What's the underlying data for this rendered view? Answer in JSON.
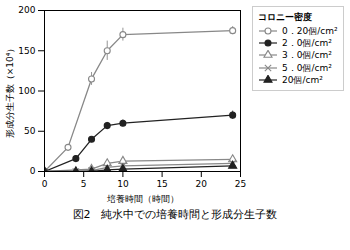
{
  "chart_data": {
    "type": "line",
    "caption": "図2　純水中での培養時間と形成分生子数",
    "x_label": "培養時間（時間）",
    "y_label": "形成分生子数（×10⁴）",
    "xlim": [
      0,
      25
    ],
    "ylim": [
      0,
      200
    ],
    "xticks": [
      0,
      5,
      10,
      15,
      20,
      25
    ],
    "yticks": [
      0,
      50,
      100,
      150,
      200
    ],
    "legend_title": "コロニー密度",
    "series": [
      {
        "name": "0．20個/cm²",
        "color": "#888888",
        "marker": "circle-open",
        "x": [
          0,
          3,
          6,
          8,
          10,
          24
        ],
        "values": [
          0,
          30,
          115,
          150,
          170,
          175
        ],
        "yerr": [
          0,
          3,
          8,
          12,
          8,
          5
        ]
      },
      {
        "name": "2．0個/cm²",
        "color": "#222222",
        "marker": "circle",
        "x": [
          0,
          4,
          6,
          8,
          10,
          24
        ],
        "values": [
          0,
          16,
          40,
          57,
          60,
          70
        ],
        "yerr": [
          0,
          0,
          3,
          4,
          4,
          5
        ]
      },
      {
        "name": "3．0個/cm²",
        "color": "#888888",
        "marker": "triangle-open",
        "x": [
          0,
          6,
          8,
          10,
          24
        ],
        "values": [
          0,
          3,
          10,
          13,
          15
        ],
        "yerr": [
          0,
          0,
          1,
          1,
          1
        ]
      },
      {
        "name": "5．0個/cm²",
        "color": "#888888",
        "marker": "x",
        "x": [
          0,
          4,
          6,
          8,
          10,
          24
        ],
        "values": [
          0,
          0,
          1,
          5,
          7,
          10
        ],
        "yerr": [
          0,
          0,
          0,
          0,
          0,
          0
        ]
      },
      {
        "name": "20個/cm²",
        "color": "#222222",
        "marker": "triangle",
        "x": [
          0,
          4,
          6,
          8,
          10,
          24
        ],
        "values": [
          0,
          0,
          0,
          2,
          3,
          7
        ],
        "yerr": [
          0,
          0,
          0,
          0,
          0,
          0
        ]
      }
    ]
  }
}
